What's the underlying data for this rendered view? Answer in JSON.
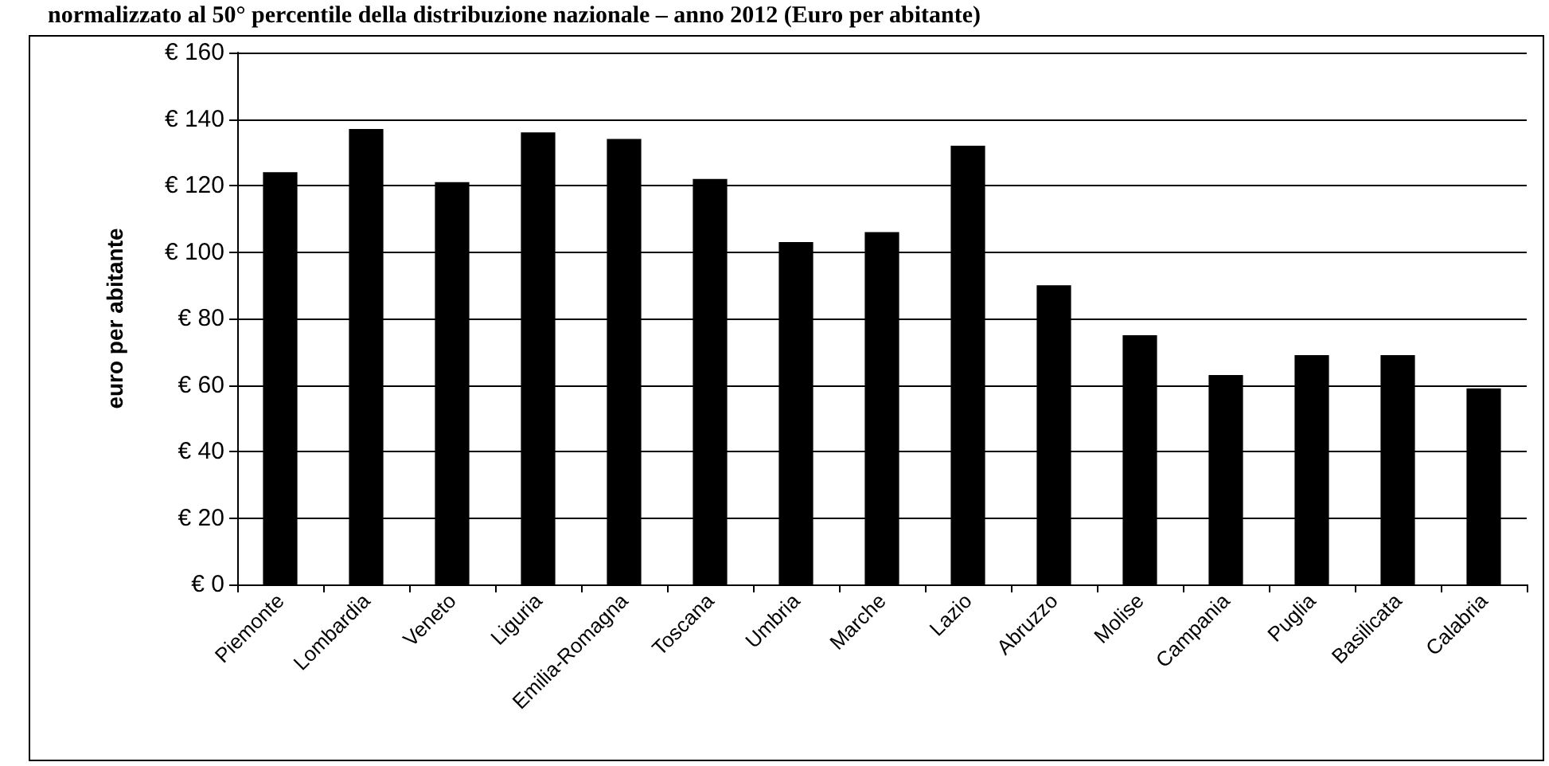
{
  "chart_data": {
    "type": "bar",
    "title": "normalizzato al 50° percentile della distribuzione nazionale – anno 2012 (Euro per abitante)",
    "ylabel": "euro per abitante",
    "categories": [
      "Piemonte",
      "Lombardia",
      "Veneto",
      "Liguria",
      "Emilia-Romagna",
      "Toscana",
      "Umbria",
      "Marche",
      "Lazio",
      "Abruzzo",
      "Molise",
      "Campania",
      "Puglia",
      "Basilicata",
      "Calabria"
    ],
    "values": [
      124,
      137,
      121,
      136,
      134,
      122,
      103,
      106,
      132,
      90,
      75,
      63,
      69,
      69,
      59
    ],
    "color": "#000000",
    "ylim": [
      0,
      160
    ],
    "yticks": [
      {
        "value": 0,
        "label": "€ 0"
      },
      {
        "value": 20,
        "label": "€ 20"
      },
      {
        "value": 40,
        "label": "€ 40"
      },
      {
        "value": 60,
        "label": "€ 60"
      },
      {
        "value": 80,
        "label": "€ 80"
      },
      {
        "value": 100,
        "label": "€ 100"
      },
      {
        "value": 120,
        "label": "€ 120"
      },
      {
        "value": 140,
        "label": "€ 140"
      },
      {
        "value": 160,
        "label": "€ 160"
      }
    ],
    "grid": "y"
  }
}
